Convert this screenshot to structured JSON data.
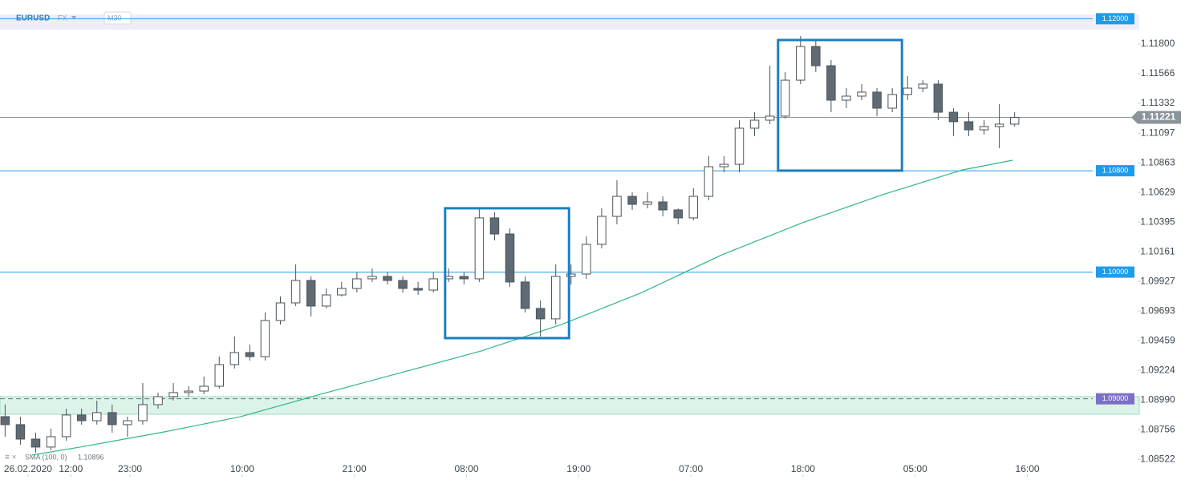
{
  "chart_data": {
    "type": "candlestick",
    "symbol": "EURUSD",
    "market": "FX",
    "timeframe": "M30",
    "xlim": [
      -1,
      213
    ],
    "ylim": [
      1.08416,
      1.12053
    ],
    "xticks": [
      {
        "value": 4.5,
        "label": "26.02.2020"
      },
      {
        "value": 12.9,
        "label": "12:00"
      },
      {
        "value": 24.5,
        "label": "23:00"
      },
      {
        "value": 46.5,
        "label": "10:00"
      },
      {
        "value": 68.5,
        "label": "21:00"
      },
      {
        "value": 90.5,
        "label": "08:00"
      },
      {
        "value": 112.5,
        "label": "19:00"
      },
      {
        "value": 134.5,
        "label": "07:00"
      },
      {
        "value": 156.5,
        "label": "18:00"
      },
      {
        "value": 178.5,
        "label": "05:00"
      },
      {
        "value": 200.5,
        "label": "16:00"
      }
    ],
    "yticks": [
      {
        "value": 1.118,
        "label": "1.11800"
      },
      1.11566,
      1.11332,
      1.11097,
      1.10863,
      1.10629,
      1.10395,
      1.10161,
      1.09927,
      1.09693,
      1.09459,
      1.09224,
      {
        "value": 1.0899,
        "label": "1.08990"
      },
      1.08756,
      1.08522
    ],
    "up_color": "#ffffff",
    "down_color": "#5f6a72",
    "wick_color": "#4a545b",
    "x": [
      0,
      3,
      6,
      9,
      12,
      15,
      18,
      21,
      24,
      27,
      30,
      33,
      36,
      39,
      42,
      45,
      48,
      51,
      54,
      57,
      60,
      63,
      66,
      69,
      72,
      75,
      78,
      81,
      84,
      87,
      90,
      93,
      96,
      99,
      102,
      105,
      108,
      111,
      114,
      117,
      120,
      123,
      126,
      129,
      132,
      135,
      138,
      141,
      144,
      147,
      150,
      153,
      156,
      159,
      162,
      165,
      168,
      171,
      174,
      177,
      180,
      183,
      186,
      189,
      192,
      195,
      198
    ],
    "open": [
      1.08859,
      1.08796,
      1.08682,
      1.08619,
      1.08701,
      1.08872,
      1.08827,
      1.08891,
      1.08796,
      1.08827,
      1.08954,
      1.09017,
      1.09049,
      1.09061,
      1.09099,
      1.0927,
      1.09365,
      1.09333,
      1.09618,
      1.09757,
      1.09934,
      1.09732,
      1.0982,
      1.09871,
      1.09947,
      1.09966,
      1.09934,
      1.09871,
      1.09858,
      1.09947,
      1.09966,
      1.09947,
      1.10428,
      1.10301,
      1.09922,
      1.09713,
      1.09631,
      1.09966,
      1.09985,
      1.10219,
      1.1044,
      1.10598,
      1.10535,
      1.10554,
      1.10491,
      1.10428,
      1.10598,
      1.10832,
      1.10851,
      1.11136,
      1.11199,
      1.11231,
      1.11515,
      1.11781,
      1.11629,
      1.11357,
      1.11389,
      1.11421,
      1.11294,
      1.11402,
      1.11452,
      1.11484,
      1.11262,
      1.11187,
      1.11123,
      1.11149,
      1.11168
    ],
    "high": [
      1.08954,
      1.08859,
      1.08733,
      1.08764,
      1.08922,
      1.08922,
      1.08986,
      1.08954,
      1.08859,
      1.09125,
      1.09049,
      1.09125,
      1.09099,
      1.09175,
      1.09333,
      1.09492,
      1.09428,
      1.09681,
      1.09808,
      1.10061,
      1.09966,
      1.09871,
      1.09922,
      1.09998,
      1.10029,
      1.09998,
      1.09966,
      1.09922,
      1.09998,
      1.10029,
      1.09998,
      1.10503,
      1.10472,
      1.10345,
      1.09966,
      1.09776,
      1.10061,
      1.10061,
      1.10282,
      1.10503,
      1.10725,
      1.1063,
      1.1063,
      1.10598,
      1.10503,
      1.10662,
      1.10915,
      1.10915,
      1.11199,
      1.11262,
      1.11629,
      1.11579,
      1.11863,
      1.11832,
      1.11674,
      1.11452,
      1.11484,
      1.11452,
      1.11452,
      1.11547,
      1.11515,
      1.11515,
      1.11294,
      1.11262,
      1.11199,
      1.11326,
      1.11262
    ],
    "low": [
      1.08701,
      1.08638,
      1.08575,
      1.08593,
      1.08669,
      1.08796,
      1.08796,
      1.08733,
      1.08701,
      1.08796,
      1.08922,
      1.08986,
      1.09017,
      1.09036,
      1.0908,
      1.09239,
      1.09302,
      1.09302,
      1.09586,
      1.09732,
      1.0965,
      1.09713,
      1.09808,
      1.09839,
      1.09922,
      1.09903,
      1.09839,
      1.0982,
      1.09839,
      1.09922,
      1.09903,
      1.09922,
      1.1025,
      1.09884,
      1.09681,
      1.09492,
      1.09586,
      1.09903,
      1.09947,
      1.10187,
      1.10377,
      1.10491,
      1.10503,
      1.1044,
      1.10377,
      1.10409,
      1.10567,
      1.10788,
      1.10788,
      1.11073,
      1.11168,
      1.11212,
      1.11484,
      1.11579,
      1.11262,
      1.11294,
      1.11357,
      1.11231,
      1.11262,
      1.11357,
      1.11421,
      1.11199,
      1.11073,
      1.11073,
      1.11085,
      1.10978,
      1.11149
    ],
    "close": [
      1.08796,
      1.08682,
      1.08619,
      1.08701,
      1.08872,
      1.08827,
      1.08891,
      1.08796,
      1.08827,
      1.08954,
      1.09017,
      1.09049,
      1.09061,
      1.09099,
      1.0927,
      1.09365,
      1.09333,
      1.09618,
      1.09757,
      1.09934,
      1.09732,
      1.0982,
      1.09871,
      1.09947,
      1.09966,
      1.09934,
      1.09871,
      1.09858,
      1.09947,
      1.09966,
      1.09947,
      1.10428,
      1.10301,
      1.09922,
      1.09713,
      1.09631,
      1.09966,
      1.09985,
      1.10219,
      1.1044,
      1.10598,
      1.10535,
      1.10554,
      1.10491,
      1.10428,
      1.10598,
      1.10832,
      1.10851,
      1.11136,
      1.11199,
      1.11231,
      1.11515,
      1.11781,
      1.11629,
      1.11357,
      1.11389,
      1.11421,
      1.11294,
      1.11402,
      1.11452,
      1.11484,
      1.11262,
      1.11187,
      1.11123,
      1.11149,
      1.11168,
      1.11221
    ],
    "indicator": {
      "name": "SMA (100, 0)",
      "last_value": 1.10896,
      "color": "#2fb68a",
      "x": [
        5.3,
        14.7,
        30.5,
        46.2,
        61.9,
        77.7,
        93.4,
        109.1,
        124.9,
        140.6,
        156.4,
        172.1,
        187.8,
        197.6
      ],
      "values": [
        1.08556,
        1.08619,
        1.08733,
        1.08859,
        1.09036,
        1.09207,
        1.09378,
        1.09586,
        1.09839,
        1.10137,
        1.1039,
        1.10611,
        1.10807,
        1.10883
      ]
    },
    "levels": [
      {
        "value": 1.12,
        "label": "1.12000",
        "color": "#1e9be9"
      },
      {
        "value": 1.108,
        "label": "1.10800",
        "color": "#1e9be9"
      },
      {
        "value": 1.1,
        "label": "1.10000",
        "color": "#1e9be9"
      },
      {
        "value": 1.09,
        "label": "1.09000",
        "color": "#7b70c6"
      }
    ],
    "current_price": 1.11221,
    "zone": [
      1.08878,
      1.09017
    ],
    "highlight_boxes": [
      {
        "xlim": [
          86.3,
          110.6
        ],
        "ylim": [
          1.09479,
          1.10504
        ]
      },
      {
        "xlim": [
          151.6,
          175.9
        ],
        "ylim": [
          1.10801,
          1.11832
        ]
      }
    ]
  }
}
